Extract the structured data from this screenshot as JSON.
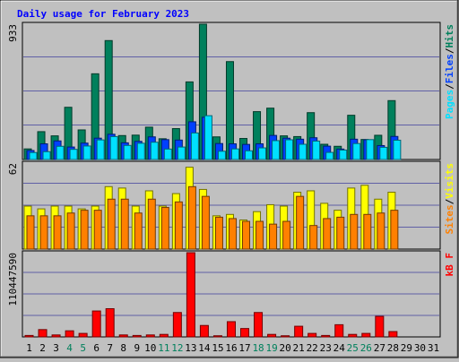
{
  "chart_data": [
    {
      "type": "bar",
      "panel": "hits-files-pages",
      "title": "Daily usage for February 2023",
      "categories": [
        "1",
        "2",
        "3",
        "4",
        "5",
        "6",
        "7",
        "8",
        "9",
        "10",
        "11",
        "12",
        "13",
        "14",
        "15",
        "16",
        "17",
        "18",
        "19",
        "20",
        "21",
        "22",
        "23",
        "24",
        "25",
        "26",
        "27",
        "28",
        "29",
        "30",
        "31"
      ],
      "ymax_label": "933",
      "ylim": [
        0,
        933
      ],
      "ylabel_parts": [
        "Pages",
        "/",
        "Files",
        "/",
        "Hits"
      ],
      "series": [
        {
          "name": "Hits",
          "color": "#00805c",
          "values": [
            73,
            192,
            163,
            360,
            204,
            591,
            820,
            165,
            168,
            223,
            143,
            213,
            535,
            933,
            156,
            675,
            145,
            330,
            354,
            163,
            158,
            323,
            105,
            91,
            305,
            138,
            167,
            406,
            0,
            0,
            0
          ]
        },
        {
          "name": "Files",
          "color": "#0040ff",
          "values": [
            62,
            108,
            128,
            86,
            113,
            147,
            174,
            115,
            125,
            156,
            137,
            134,
            260,
            291,
            110,
            108,
            104,
            108,
            166,
            147,
            140,
            150,
            92,
            72,
            140,
            136,
            96,
            159,
            0,
            0,
            0
          ]
        },
        {
          "name": "Pages",
          "color": "#00e0ff",
          "values": [
            48,
            54,
            91,
            70,
            93,
            135,
            158,
            97,
            112,
            119,
            72,
            86,
            183,
            302,
            57,
            73,
            60,
            80,
            130,
            136,
            105,
            127,
            49,
            65,
            110,
            137,
            84,
            133,
            0,
            0,
            0
          ]
        }
      ]
    },
    {
      "type": "bar",
      "panel": "visits-sites",
      "categories": [
        "1",
        "2",
        "3",
        "4",
        "5",
        "6",
        "7",
        "8",
        "9",
        "10",
        "11",
        "12",
        "13",
        "14",
        "15",
        "16",
        "17",
        "18",
        "19",
        "20",
        "21",
        "22",
        "23",
        "24",
        "25",
        "26",
        "27",
        "28",
        "29",
        "30",
        "31"
      ],
      "ymax_label": "62",
      "ylim": [
        0,
        62
      ],
      "ylabel_parts": [
        "Sites",
        "/",
        "Visits"
      ],
      "series": [
        {
          "name": "Visits",
          "color": "#ffff00",
          "values": [
            31,
            29,
            31,
            31,
            29,
            31,
            45,
            44,
            31,
            42,
            31,
            40,
            59,
            43,
            24,
            25,
            21,
            27,
            32,
            31,
            41,
            42,
            33,
            28,
            44,
            46,
            36,
            41,
            0,
            0,
            0
          ]
        },
        {
          "name": "Sites",
          "color": "#ff8000",
          "values": [
            24,
            24,
            24,
            26,
            28,
            28,
            36,
            36,
            26,
            36,
            30,
            34,
            45,
            38,
            23,
            22,
            20,
            20,
            18,
            20,
            38,
            17,
            22,
            23,
            25,
            25,
            26,
            28,
            0,
            0,
            0
          ]
        }
      ]
    },
    {
      "type": "bar",
      "panel": "kbytes",
      "categories": [
        "1",
        "2",
        "3",
        "4",
        "5",
        "6",
        "7",
        "8",
        "9",
        "10",
        "11",
        "12",
        "13",
        "14",
        "15",
        "16",
        "17",
        "18",
        "19",
        "20",
        "21",
        "22",
        "23",
        "24",
        "25",
        "26",
        "27",
        "28",
        "29",
        "30",
        "31"
      ],
      "ymax_label": "110447590",
      "ylim": [
        0,
        110447590
      ],
      "ylabel_parts": [
        "kB F"
      ],
      "series": [
        {
          "name": "kB F",
          "color": "#ff0000",
          "values": [
            1900000,
            9600000,
            2600000,
            8000000,
            4600000,
            34000000,
            37000000,
            2600000,
            1900000,
            2600000,
            3300000,
            32000000,
            110447590,
            15000000,
            1500000,
            20000000,
            11000000,
            32000000,
            3300000,
            1500000,
            14000000,
            4600000,
            1900000,
            16000000,
            3300000,
            4600000,
            27000000,
            7000000,
            0,
            0,
            0
          ]
        }
      ]
    }
  ],
  "x_labels": [
    {
      "text": "1",
      "color": "#000000"
    },
    {
      "text": "2",
      "color": "#000000"
    },
    {
      "text": "3",
      "color": "#000000"
    },
    {
      "text": "4",
      "color": "#00805c"
    },
    {
      "text": "5",
      "color": "#00805c"
    },
    {
      "text": "6",
      "color": "#000000"
    },
    {
      "text": "7",
      "color": "#000000"
    },
    {
      "text": "8",
      "color": "#000000"
    },
    {
      "text": "9",
      "color": "#000000"
    },
    {
      "text": "10",
      "color": "#000000"
    },
    {
      "text": "11",
      "color": "#00805c"
    },
    {
      "text": "12",
      "color": "#00805c"
    },
    {
      "text": "13",
      "color": "#000000"
    },
    {
      "text": "14",
      "color": "#000000"
    },
    {
      "text": "15",
      "color": "#000000"
    },
    {
      "text": "16",
      "color": "#000000"
    },
    {
      "text": "17",
      "color": "#000000"
    },
    {
      "text": "18",
      "color": "#00805c"
    },
    {
      "text": "19",
      "color": "#00805c"
    },
    {
      "text": "20",
      "color": "#000000"
    },
    {
      "text": "21",
      "color": "#000000"
    },
    {
      "text": "22",
      "color": "#000000"
    },
    {
      "text": "23",
      "color": "#000000"
    },
    {
      "text": "24",
      "color": "#000000"
    },
    {
      "text": "25",
      "color": "#00805c"
    },
    {
      "text": "26",
      "color": "#00805c"
    },
    {
      "text": "27",
      "color": "#000000"
    },
    {
      "text": "28",
      "color": "#000000"
    },
    {
      "text": "29",
      "color": "#000000"
    },
    {
      "text": "30",
      "color": "#000000"
    },
    {
      "text": "31",
      "color": "#000000"
    }
  ],
  "colors": {
    "title": "#0000ff",
    "background": "#c0c0c0",
    "hits": "#00805c",
    "files": "#0040ff",
    "pages": "#00e0ff",
    "visits": "#ffff00",
    "sites": "#ff8000",
    "kbytes": "#ff0000",
    "gridline": "#00008b",
    "weekend": "#00805c"
  }
}
